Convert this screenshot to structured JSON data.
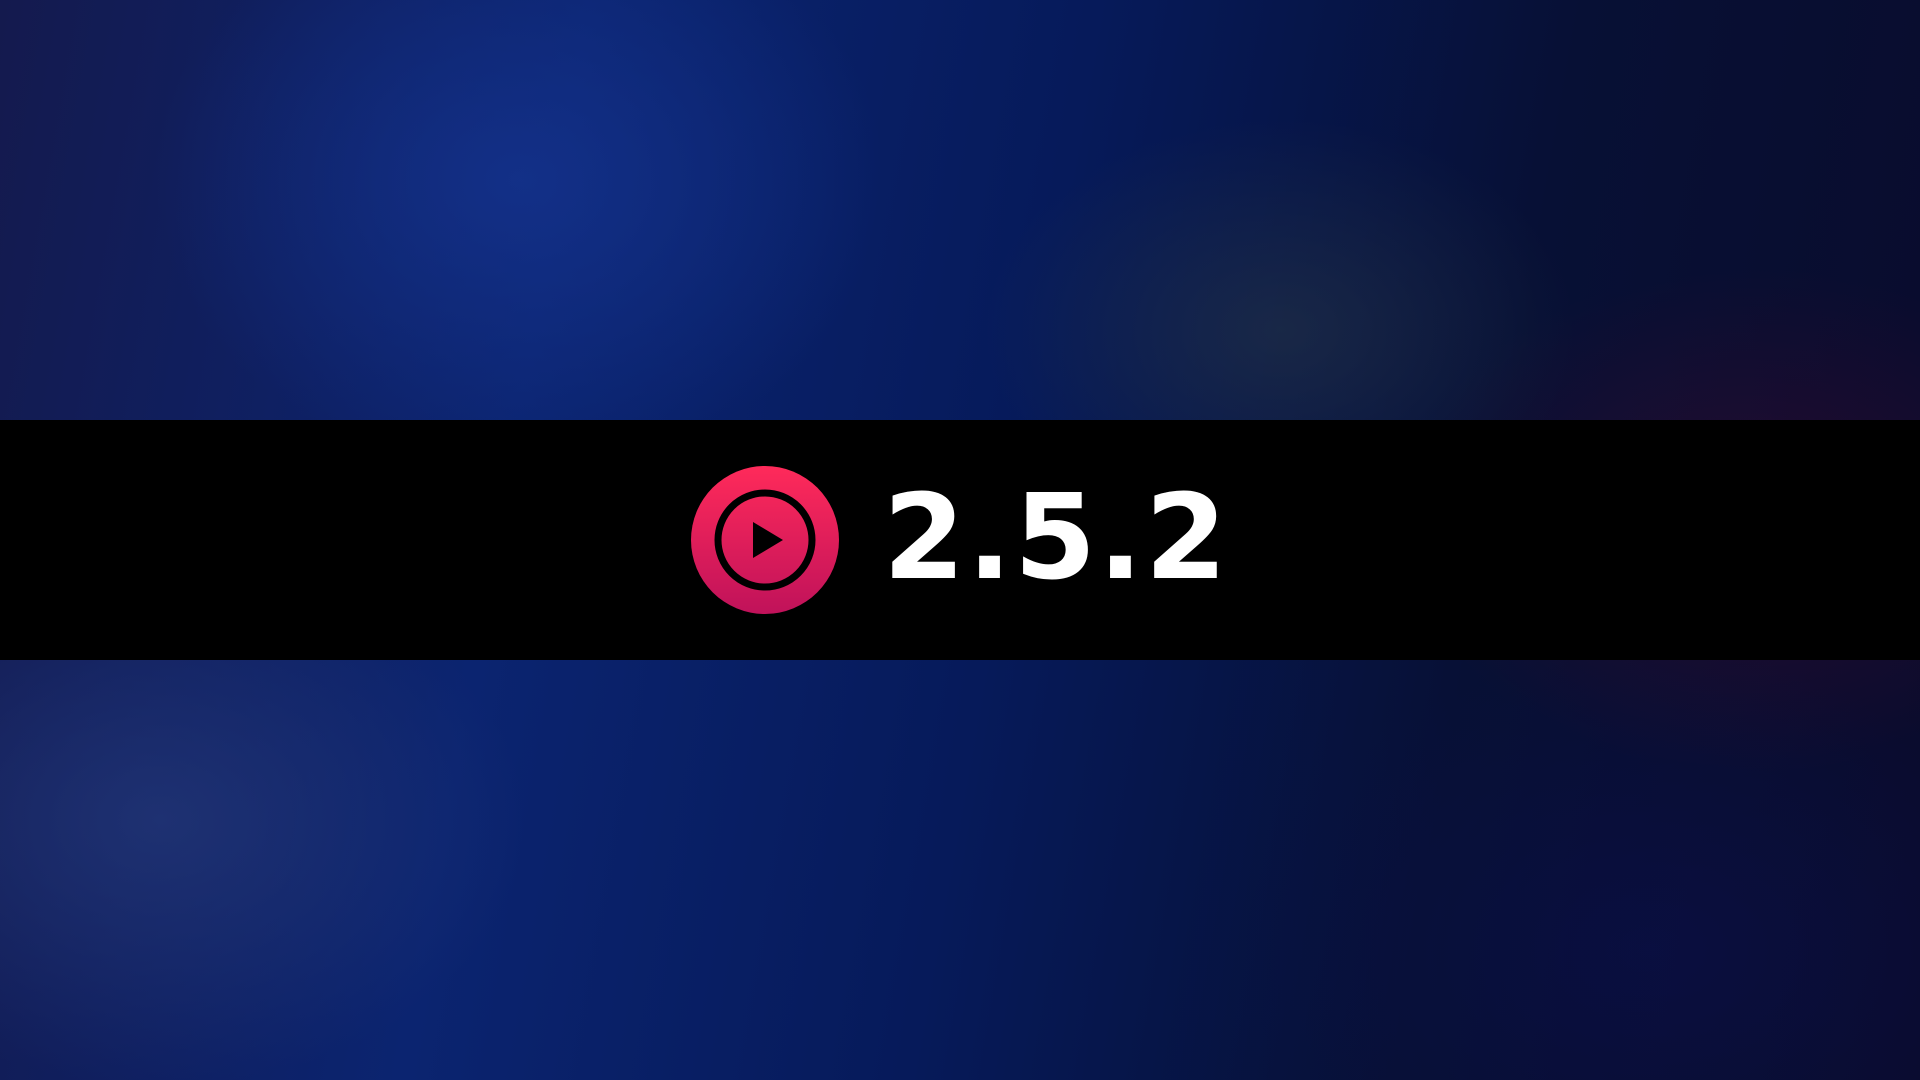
{
  "app": {
    "icon": "youtube-music-play-icon",
    "version": "2.5.2"
  },
  "colors": {
    "banner": "#000000",
    "logo_top": "#ff2a5a",
    "logo_bottom": "#c0125a",
    "text": "#ffffff"
  }
}
